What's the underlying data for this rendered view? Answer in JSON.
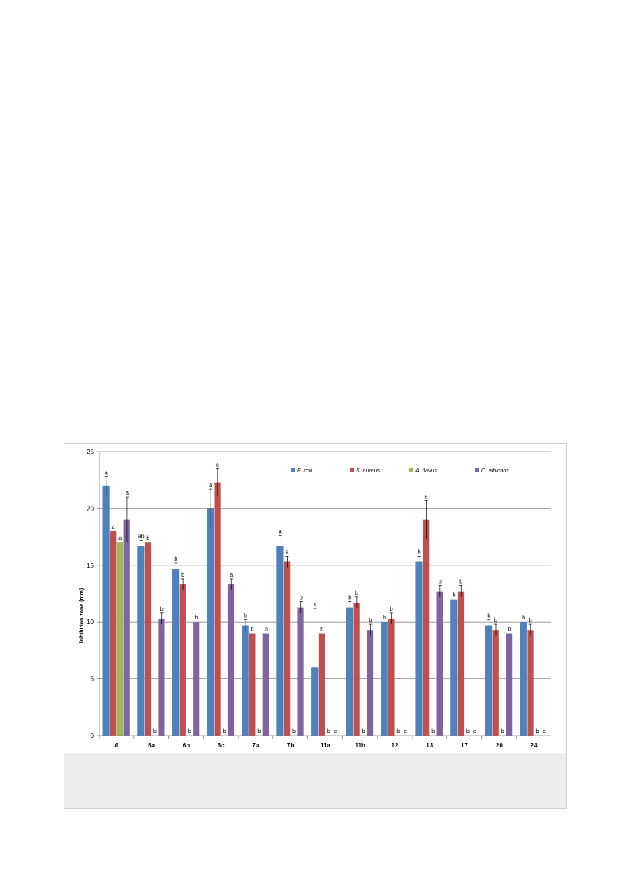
{
  "chart_data": {
    "type": "bar",
    "title": "",
    "xlabel": "",
    "ylabel": "Inhibition zone (mm)",
    "ylim": [
      0,
      25
    ],
    "yticks": [
      0,
      5,
      10,
      15,
      20,
      25
    ],
    "grid": true,
    "legend_position": "top-right",
    "categories": [
      "A",
      "6a",
      "6b",
      "6c",
      "7a",
      "7b",
      "11a",
      "11b",
      "12",
      "13",
      "17",
      "20",
      "24"
    ],
    "series": [
      {
        "name": "E. coli",
        "color": "#4f81bd",
        "values": [
          22,
          16.7,
          14.7,
          20,
          9.7,
          16.7,
          6,
          11.3,
          10,
          15.3,
          12,
          9.7,
          10
        ],
        "errors": [
          0.8,
          0.5,
          0.5,
          1.7,
          0.5,
          0.9,
          5.2,
          0.5,
          0,
          0.5,
          0,
          0.5,
          0
        ],
        "labels": [
          "a",
          "ab",
          "b",
          "a",
          "b",
          "a",
          "c",
          "b",
          "b",
          "b",
          "b",
          "b",
          "b"
        ]
      },
      {
        "name": "S. aureus",
        "color": "#c0504d",
        "values": [
          18,
          17,
          13.3,
          22.3,
          9,
          15.3,
          9,
          11.7,
          10.3,
          19,
          12.7,
          9.3,
          9.3
        ],
        "errors": [
          0,
          0,
          0.5,
          1.2,
          0,
          0.5,
          0,
          0.5,
          0.5,
          1.7,
          0.5,
          0.5,
          0.5
        ],
        "labels": [
          "a",
          "b",
          "b",
          "a",
          "b",
          "a",
          "b",
          "b",
          "b",
          "a",
          "b",
          "b",
          "b"
        ]
      },
      {
        "name": "A. flavus",
        "color": "#9bbb59",
        "values": [
          17,
          0,
          0,
          0,
          0,
          0,
          0,
          0,
          0,
          0,
          0,
          0,
          0
        ],
        "errors": [
          0,
          0,
          0,
          0,
          0,
          0,
          0,
          0,
          0,
          0,
          0,
          0,
          0
        ],
        "labels": [
          "a",
          "b",
          "b",
          "b",
          "b",
          "b",
          "b",
          "b",
          "b",
          "b",
          "b",
          "b",
          "b"
        ]
      },
      {
        "name": "C. albicans",
        "color": "#8064a2",
        "values": [
          19,
          10.3,
          10,
          13.3,
          9,
          11.3,
          0,
          9.3,
          0,
          12.7,
          0,
          9,
          0
        ],
        "errors": [
          2,
          0.5,
          0,
          0.5,
          0,
          0.5,
          0,
          0.5,
          0,
          0.5,
          0,
          0,
          0
        ],
        "labels": [
          "a",
          "b",
          "b",
          "a",
          "b",
          "b",
          "c",
          "b",
          "c",
          "b",
          "c",
          "b",
          "c"
        ]
      }
    ]
  }
}
